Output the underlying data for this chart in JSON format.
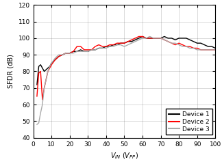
{
  "title": "",
  "xlabel_math": "$V_{IN}$",
  "xlabel_unit": "$(V_{PP})$",
  "ylabel": "SFDR (dB)",
  "xlim": [
    0,
    100
  ],
  "ylim": [
    40,
    120
  ],
  "yticks": [
    40,
    50,
    60,
    70,
    80,
    90,
    100,
    110,
    120
  ],
  "xticks": [
    0,
    10,
    20,
    30,
    40,
    50,
    60,
    70,
    80,
    90,
    100
  ],
  "device1_color": "#000000",
  "device2_color": "#ff0000",
  "device3_color": "#aaaaaa",
  "legend_labels": [
    "Device 1",
    "Device 2",
    "Device 3"
  ],
  "device1_x": [
    2,
    3,
    4,
    5,
    6,
    7,
    8,
    9,
    10,
    12,
    14,
    16,
    18,
    20,
    22,
    24,
    26,
    28,
    30,
    32,
    34,
    36,
    38,
    40,
    42,
    44,
    46,
    48,
    50,
    52,
    54,
    56,
    58,
    60,
    62,
    64,
    66,
    68,
    70,
    72,
    74,
    76,
    78,
    80,
    82,
    84,
    86,
    88,
    90,
    92,
    94,
    96,
    98,
    100
  ],
  "device1_y": [
    72,
    83,
    84,
    82,
    80,
    81,
    82,
    83,
    85,
    87,
    89,
    90,
    91,
    91,
    92,
    92,
    93,
    92,
    92,
    93,
    93,
    94,
    94,
    95,
    95,
    96,
    96,
    97,
    97,
    98,
    98,
    99,
    100,
    101,
    100,
    100,
    100,
    100,
    100,
    101,
    100,
    100,
    99,
    100,
    100,
    100,
    99,
    98,
    97,
    97,
    96,
    95,
    95,
    94
  ],
  "device2_x": [
    2,
    3,
    4,
    5,
    6,
    7,
    8,
    9,
    10,
    12,
    14,
    16,
    18,
    20,
    22,
    24,
    26,
    28,
    30,
    32,
    34,
    36,
    38,
    40,
    42,
    44,
    46,
    48,
    50,
    52,
    54,
    56,
    58,
    60,
    62,
    64,
    66,
    68,
    70,
    72,
    74,
    76,
    78,
    80,
    82,
    84,
    86,
    88,
    90,
    92,
    94,
    96,
    98,
    100
  ],
  "device2_y": [
    65,
    79,
    80,
    63,
    70,
    75,
    80,
    82,
    84,
    87,
    89,
    90,
    91,
    91,
    92,
    95,
    95,
    93,
    93,
    93,
    95,
    96,
    95,
    95,
    96,
    96,
    97,
    97,
    97,
    98,
    99,
    100,
    101,
    101,
    100,
    100,
    100,
    100,
    100,
    99,
    98,
    97,
    96,
    97,
    96,
    95,
    95,
    94,
    94,
    93,
    93,
    93,
    93,
    93
  ],
  "device3_x": [
    2,
    3,
    4,
    5,
    6,
    7,
    8,
    9,
    10,
    12,
    14,
    16,
    18,
    20,
    22,
    24,
    26,
    28,
    30,
    32,
    34,
    36,
    38,
    40,
    42,
    44,
    46,
    48,
    50,
    52,
    54,
    56,
    58,
    60,
    62,
    64,
    66,
    68,
    70,
    72,
    74,
    76,
    78,
    80,
    82,
    84,
    86,
    88,
    90,
    92,
    94,
    96,
    98,
    100
  ],
  "device3_y": [
    48,
    49,
    55,
    60,
    70,
    75,
    80,
    83,
    85,
    88,
    90,
    90,
    91,
    91,
    91,
    92,
    92,
    92,
    92,
    93,
    93,
    94,
    94,
    94,
    95,
    95,
    96,
    96,
    95,
    96,
    97,
    98,
    99,
    100,
    100,
    101,
    100,
    100,
    100,
    99,
    98,
    97,
    97,
    96,
    95,
    95,
    94,
    94,
    93,
    93,
    93,
    93,
    93,
    93
  ],
  "grid_color": "#000000",
  "grid_alpha": 0.25,
  "linewidth": 1.0,
  "tick_fontsize": 6.5,
  "label_fontsize": 7.0,
  "legend_fontsize": 6.5
}
